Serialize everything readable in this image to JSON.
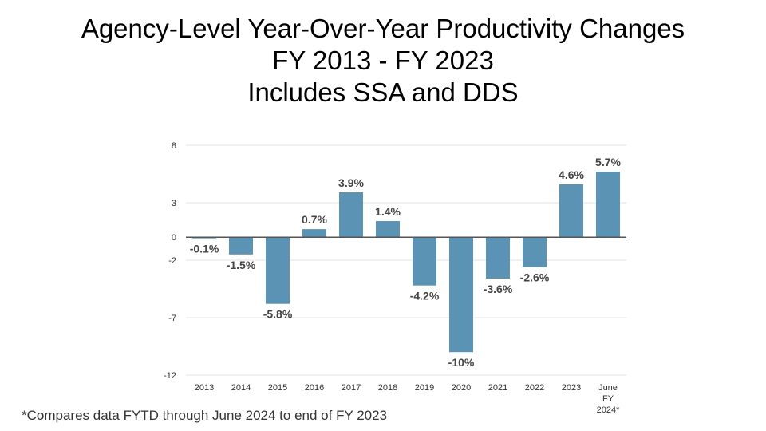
{
  "title_lines": [
    "Agency-Level Year-Over-Year Productivity Changes",
    "FY 2013 - FY 2023",
    "Includes SSA and DDS"
  ],
  "footnote": "*Compares data FYTD through June 2024 to end of FY 2023",
  "chart_data": {
    "type": "bar",
    "title": "Agency-Level Year-Over-Year Productivity Changes FY 2013 - FY 2023 Includes SSA and DDS",
    "xlabel": "",
    "ylabel": "",
    "categories": [
      "2013",
      "2014",
      "2015",
      "2016",
      "2017",
      "2018",
      "2019",
      "2020",
      "2021",
      "2022",
      "2023",
      "June FY 2024*"
    ],
    "category_lines": [
      [
        "2013"
      ],
      [
        "2014"
      ],
      [
        "2015"
      ],
      [
        "2016"
      ],
      [
        "2017"
      ],
      [
        "2018"
      ],
      [
        "2019"
      ],
      [
        "2020"
      ],
      [
        "2021"
      ],
      [
        "2022"
      ],
      [
        "2023"
      ],
      [
        "June",
        "FY",
        "2024*"
      ]
    ],
    "values": [
      -0.1,
      -1.5,
      -5.8,
      0.7,
      3.9,
      1.4,
      -4.2,
      -10,
      -3.6,
      -2.6,
      4.6,
      5.7
    ],
    "data_labels": [
      "-0.1%",
      "-1.5%",
      "-5.8%",
      "0.7%",
      "3.9%",
      "1.4%",
      "-4.2%",
      "-10%",
      "-3.6%",
      "-2.6%",
      "4.6%",
      "5.7%"
    ],
    "y_ticks": [
      8,
      3,
      0,
      -2,
      -7,
      -12
    ],
    "ylim": [
      -12,
      8
    ],
    "grid": true,
    "legend": "none",
    "colors": {
      "bar": "#5a93b3",
      "grid": "#e3e3e3",
      "zero_line": "#555555",
      "tick_text": "#333333",
      "label_text": "#444444"
    }
  }
}
